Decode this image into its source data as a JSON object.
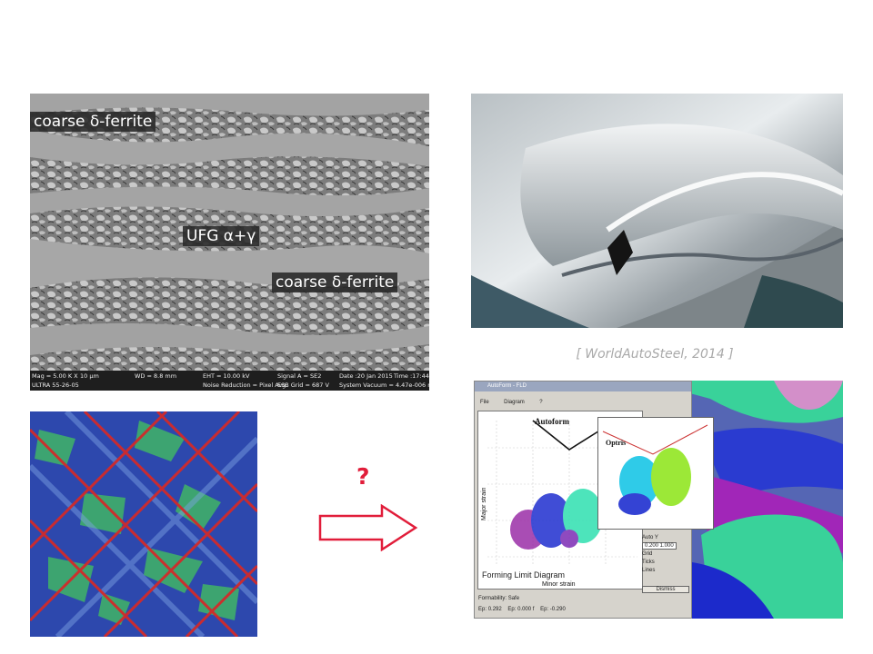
{
  "sem": {
    "label_top": "coarse δ-ferrite",
    "label_mid": "UFG α+γ",
    "label_bottom": "coarse δ-ferrite",
    "databar": {
      "mag": "Mag = 5.00 K X",
      "scale": "10 µm",
      "wd": "WD = 8.8 mm",
      "eht": "EHT = 10.00 kV",
      "signal": "Signal A = SE2",
      "date": "Date :20 Jan 2015",
      "time": "Time :17:44:12",
      "instrument": "ULTRA 55-26-05",
      "noise": "Noise Reduction = Pixel Avg.",
      "esb": "ESB Grid = 687 V",
      "vacuum": "System Vacuum = 4.47e-006 mbar"
    }
  },
  "caption": "[ WorldAutoSteel, 2014 ]",
  "question": "?",
  "fld": {
    "window_title": "AutoForm - FLD",
    "menu": [
      "File",
      "Diagram",
      "?"
    ],
    "autoform_label": "Autoform",
    "optris_label": "Optris",
    "xlabel": "Minor strain",
    "ylabel": "Major strain",
    "title": "Forming Limit Diagram",
    "controls": {
      "auto_y": "Auto Y",
      "range": "0.200  1.000",
      "grid": "Grid",
      "ticks": "Ticks",
      "lines": "Lines",
      "dismiss": "Dismiss"
    },
    "status": {
      "formability": "Formability:",
      "formability_value": "Safe",
      "ep1": "Ep:",
      "ep1_value": "0.292",
      "ep2": "Ep:",
      "ep2_value": "0.000 f",
      "ep3": "Ep:",
      "ep3_value": "-0.290"
    }
  },
  "colors": {
    "arrow": "#e11d3a",
    "question": "#e11d3a",
    "caption": "#a9a9a9"
  }
}
